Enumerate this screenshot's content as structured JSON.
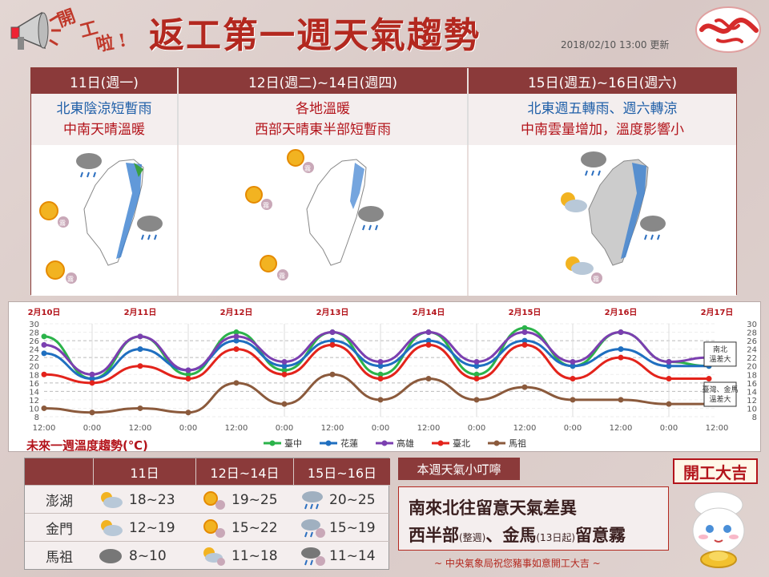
{
  "header": {
    "kaigong_chars": [
      "開",
      "工",
      "啦",
      "!"
    ],
    "title": "返工第一週天氣趨勢",
    "update_time": "2018/02/10 13:00 更新"
  },
  "forecast_columns": [
    {
      "head": "11日(週一)",
      "desc1": "北東陰涼短暫雨",
      "desc2": "中南天晴溫暖"
    },
    {
      "head": "12日(週二)~14日(週四)",
      "desc1": "各地溫暖",
      "desc2": "西部天晴東半部短暫雨",
      "desc_colors": [
        "#b3141b",
        "#b3141b"
      ]
    },
    {
      "head": "15日(週五)~16日(週六)",
      "desc1": "北東週五轉雨、週六轉涼",
      "desc2": "中南雲量增加，溫度影響小"
    }
  ],
  "map_badges": {
    "fog": "霧"
  },
  "chart_data": {
    "type": "line",
    "title": "未來一週溫度趨勢(℃)",
    "date_labels": [
      "2月10日",
      "2月11日",
      "2月12日",
      "2月13日",
      "2月14日",
      "2月15日",
      "2月16日",
      "2月17日"
    ],
    "time_ticks": [
      "12:00",
      "0:00",
      "12:00",
      "0:00",
      "12:00",
      "0:00",
      "12:00",
      "0:00",
      "12:00",
      "0:00",
      "12:00",
      "0:00",
      "12:00",
      "0:00",
      "12:00"
    ],
    "ylim": [
      8,
      30
    ],
    "y_ticks": [
      8,
      10,
      12,
      14,
      16,
      18,
      20,
      22,
      24,
      26,
      28,
      30
    ],
    "x_hours": [
      0,
      12,
      24,
      36,
      48,
      60,
      72,
      84,
      96,
      108,
      120,
      132,
      144,
      156,
      166
    ],
    "series": [
      {
        "name": "臺中",
        "color": "#2bb34a",
        "values": [
          27,
          17,
          27,
          18,
          28,
          19,
          28,
          18,
          28,
          18,
          29,
          20,
          28,
          21,
          20
        ]
      },
      {
        "name": "花蓮",
        "color": "#1f6fc0",
        "values": [
          23,
          17,
          24,
          19,
          26,
          20,
          26,
          20,
          26,
          20,
          26,
          20,
          24,
          20,
          20
        ]
      },
      {
        "name": "高雄",
        "color": "#7b3fb0",
        "values": [
          25,
          18,
          27,
          19,
          27,
          21,
          28,
          21,
          28,
          21,
          28,
          21,
          28,
          21,
          22
        ]
      },
      {
        "name": "臺北",
        "color": "#e3231b",
        "values": [
          18,
          16,
          20,
          17,
          24,
          18,
          25,
          17,
          25,
          17,
          25,
          17,
          22,
          17,
          17
        ]
      },
      {
        "name": "馬祖",
        "color": "#8b5a3c",
        "values": [
          10,
          9,
          10,
          9,
          16,
          11,
          18,
          12,
          17,
          12,
          15,
          12,
          12,
          11,
          11
        ]
      }
    ],
    "annotations": [
      {
        "text1": "南北",
        "text2": "溫差大"
      },
      {
        "text1": "臺灣、金馬",
        "text2": "溫差大"
      }
    ]
  },
  "islands": {
    "headers": [
      "11日",
      "12日~14日",
      "15日~16日"
    ],
    "rows": [
      {
        "name": "澎湖",
        "ranges": [
          "18~23",
          "19~25",
          "20~25"
        ],
        "icons": [
          "partly-cloudy-icon",
          "sunny-fog-icon",
          "rain-icon"
        ]
      },
      {
        "name": "金門",
        "ranges": [
          "12~19",
          "15~22",
          "15~19"
        ],
        "icons": [
          "partly-cloudy-icon",
          "sunny-fog-icon",
          "rain-fog-icon"
        ]
      },
      {
        "name": "馬祖",
        "ranges": [
          "8~10",
          "11~18",
          "11~14"
        ],
        "icons": [
          "cloudy-icon",
          "partly-cloudy-fog-icon",
          "rain-fog-icon"
        ]
      }
    ]
  },
  "tips": {
    "tag": "本週天氣小叮嚀",
    "line1": "南來北往留意天氣差異",
    "line2_a": "西半部",
    "line2_a_small": "(整週)",
    "line2_b": "、金馬",
    "line2_b_small": "(13日起)",
    "line2_c": "留意霧"
  },
  "footer": "~ 中央氣象局祝您豬事如意開工大吉 ~",
  "badge": "開工大吉"
}
